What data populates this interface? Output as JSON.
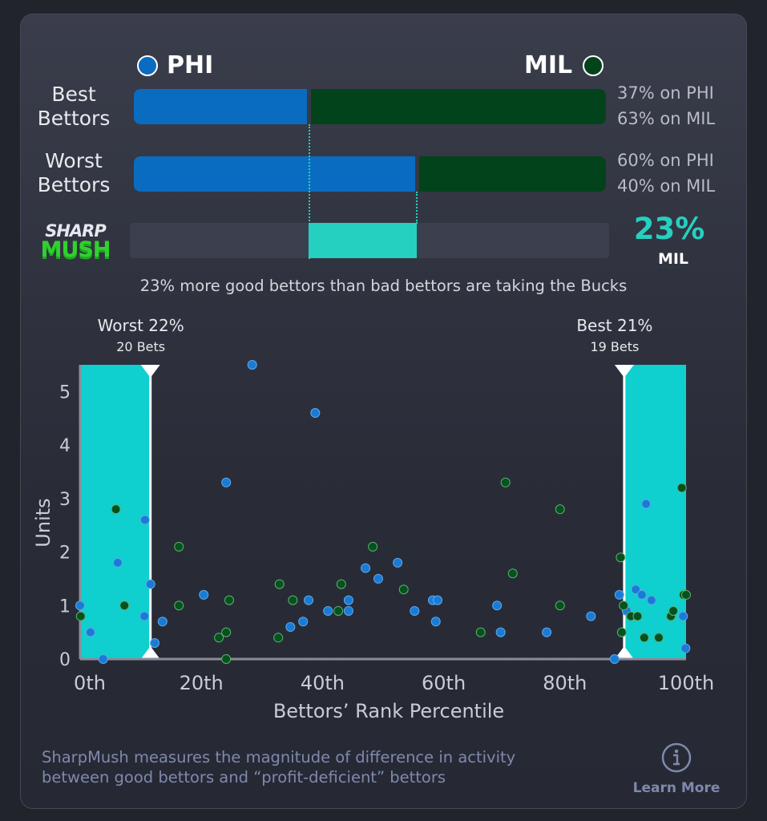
{
  "teams": {
    "left": {
      "abbr": "PHI",
      "color": "#0a6cc0"
    },
    "right": {
      "abbr": "MIL",
      "color": "#03431c"
    }
  },
  "best": {
    "label_line1": "Best",
    "label_line2": "Bettors",
    "phi_pct": 37,
    "mil_pct": 63,
    "phi_text": "37% on PHI",
    "mil_text": "63% on MIL"
  },
  "worst": {
    "label_line1": "Worst",
    "label_line2": "Bettors",
    "phi_pct": 60,
    "mil_pct": 40,
    "phi_text": "60% on PHI",
    "mil_text": "40% on MIL"
  },
  "sharp": {
    "logo_line1": "SHARP",
    "logo_line2": "MUSH",
    "value_text": "23%",
    "team": "MIL",
    "accent": "#25d0c0"
  },
  "caption": "23% more good bettors than bad bettors are taking the Bucks",
  "chart_data": {
    "type": "scatter",
    "xlabel": "Bettors’ Rank Percentile",
    "ylabel": "Units",
    "xlim": [
      0,
      100
    ],
    "ylim": [
      0,
      5.5
    ],
    "x_ticks": [
      {
        "v": 0,
        "label": "0th"
      },
      {
        "v": 20,
        "label": "20th"
      },
      {
        "v": 40,
        "label": "40th"
      },
      {
        "v": 60,
        "label": "60th"
      },
      {
        "v": 80,
        "label": "80th"
      },
      {
        "v": 100,
        "label": "100th"
      }
    ],
    "y_ticks": [
      0,
      1,
      2,
      3,
      4,
      5
    ],
    "bands": [
      {
        "from": 0,
        "to": 11.6,
        "title": "Worst 22%",
        "subtitle": "20 Bets"
      },
      {
        "from": 89.8,
        "to": 100,
        "title": "Best 21%",
        "subtitle": "19 Bets"
      }
    ],
    "band_color": "#0fcfcf",
    "series": [
      {
        "name": "PHI",
        "color": "#1a7bd4",
        "points": [
          [
            0,
            1.0
          ],
          [
            1.7,
            0.5
          ],
          [
            3.8,
            0
          ],
          [
            6.2,
            1.8
          ],
          [
            10.7,
            2.6
          ],
          [
            11.6,
            1.4
          ],
          [
            10.6,
            0.8
          ],
          [
            12.3,
            0.3
          ],
          [
            13.6,
            0.7
          ],
          [
            20.4,
            1.2
          ],
          [
            24.1,
            3.3
          ],
          [
            28.4,
            5.5
          ],
          [
            34.7,
            0.6
          ],
          [
            36.8,
            0.7
          ],
          [
            37.7,
            1.1
          ],
          [
            38.8,
            4.6
          ],
          [
            40.9,
            0.9
          ],
          [
            44.3,
            0.9
          ],
          [
            44.3,
            1.1
          ],
          [
            47.1,
            1.7
          ],
          [
            49.2,
            1.5
          ],
          [
            52.4,
            1.8
          ],
          [
            55.2,
            0.9
          ],
          [
            58.2,
            1.1
          ],
          [
            59,
            1.1
          ],
          [
            58.7,
            0.7
          ],
          [
            68.8,
            1.0
          ],
          [
            69.4,
            0.5
          ],
          [
            77,
            0.5
          ],
          [
            84.3,
            0.8
          ],
          [
            88.2,
            0
          ],
          [
            89,
            1.2
          ],
          [
            90.2,
            0.9
          ],
          [
            91.7,
            1.3
          ],
          [
            92.7,
            1.2
          ],
          [
            93.4,
            2.9
          ],
          [
            94.3,
            1.1
          ],
          [
            99.5,
            0.8
          ],
          [
            99.9,
            0.2
          ]
        ]
      },
      {
        "name": "MIL",
        "color": "#05521f",
        "points": [
          [
            0.1,
            0.8
          ],
          [
            5.9,
            2.8
          ],
          [
            7.3,
            1.0
          ],
          [
            16.3,
            2.1
          ],
          [
            16.3,
            1.0
          ],
          [
            22.9,
            0.4
          ],
          [
            24.1,
            0.5
          ],
          [
            24.1,
            0
          ],
          [
            24.6,
            1.1
          ],
          [
            32.7,
            0.4
          ],
          [
            32.9,
            1.4
          ],
          [
            35.1,
            1.1
          ],
          [
            42.6,
            0.9
          ],
          [
            43.1,
            1.4
          ],
          [
            48.3,
            2.1
          ],
          [
            53.4,
            1.3
          ],
          [
            66.1,
            0.5
          ],
          [
            70.2,
            3.3
          ],
          [
            71.4,
            1.6
          ],
          [
            79.2,
            2.8
          ],
          [
            79.2,
            1.0
          ],
          [
            89.2,
            1.9
          ],
          [
            89.4,
            0.5
          ],
          [
            89.7,
            1.0
          ],
          [
            90.9,
            0.8
          ],
          [
            92,
            0.8
          ],
          [
            93.1,
            0.4
          ],
          [
            95.5,
            0.4
          ],
          [
            97.5,
            0.8
          ],
          [
            97.9,
            0.9
          ],
          [
            99.3,
            3.2
          ],
          [
            99.6,
            1.2
          ],
          [
            100,
            1.2
          ]
        ]
      }
    ]
  },
  "footer": {
    "text_line1": "SharpMush measures the magnitude of difference in activity",
    "text_line2": "between good bettors and “profit-deficient” bettors",
    "learn_more": "Learn More",
    "info_icon": "info-circle-icon"
  }
}
